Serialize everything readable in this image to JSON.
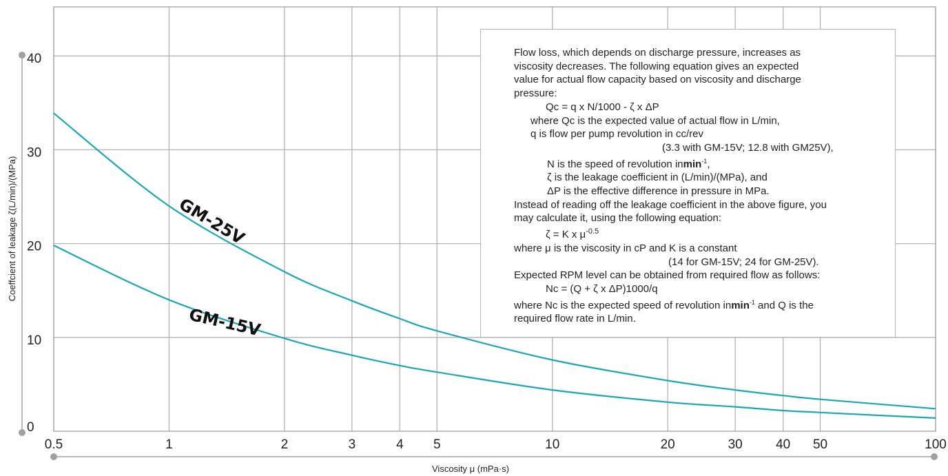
{
  "chart_data": {
    "type": "line",
    "xscale": "log",
    "xlim": [
      0.5,
      100
    ],
    "ylim": [
      0,
      45
    ],
    "xlabel": "Viscosity μ (mPa·s)",
    "ylabel": "Coeffcient of leakage ζ(L/min)/(MPa)",
    "x_ticks": [
      0.5,
      1,
      2,
      3,
      4,
      5,
      10,
      20,
      30,
      40,
      50,
      100
    ],
    "x_tick_labels": [
      "0.5",
      "1",
      "2",
      "3",
      "4",
      "5",
      "10",
      "20",
      "30",
      "40",
      "50",
      "100"
    ],
    "y_ticks": [
      0,
      10,
      20,
      30,
      40
    ],
    "y_tick_labels": [
      "0",
      "10",
      "20",
      "30",
      "40"
    ],
    "grid": true,
    "series": [
      {
        "name": "GM-25V",
        "color": "#1aa6b4",
        "x": [
          0.5,
          1,
          2,
          3,
          4,
          5,
          10,
          20,
          30,
          40,
          50,
          100
        ],
        "y": [
          33.9,
          24.0,
          17.0,
          13.9,
          12.0,
          10.7,
          7.6,
          5.4,
          4.4,
          3.8,
          3.4,
          2.4
        ]
      },
      {
        "name": "GM-15V",
        "color": "#1aa6b4",
        "x": [
          0.5,
          1,
          2,
          3,
          4,
          5,
          10,
          20,
          30,
          40,
          50,
          100
        ],
        "y": [
          19.8,
          14.0,
          9.9,
          8.1,
          7.0,
          6.3,
          4.4,
          3.1,
          2.6,
          2.2,
          2.0,
          1.4
        ]
      }
    ],
    "curve_labels": [
      {
        "text": "GM-25V",
        "series": "GM-25V"
      },
      {
        "text": "GM-15V",
        "series": "GM-15V"
      }
    ]
  },
  "note": {
    "l1": "Flow loss, which depends on discharge pressure, increases as",
    "l2": "viscosity decreases.  The following equation gives an expected",
    "l3": "value for actual flow capacity based on viscosity and discharge",
    "l4": "pressure:",
    "l5": "Qc = q x N/1000 - ζ x  ΔP",
    "l6": "where Qc is the expected value of actual flow in L/min,",
    "l7": "q is flow per pump revolution in cc/rev",
    "l8": "(3.3 with GM-15V; 12.8 with GM25V),",
    "l9a": "N is the speed of revolution in",
    "l9b": "min",
    "l9c": "-1",
    "l9d": ",",
    "l10": "ζ is the leakage coefficient in (L/min)/(MPa), and",
    "l11": "ΔP is the effective difference in pressure in MPa.",
    "l12": "Instead of reading off the leakage coefficient in the above figure, you",
    "l13": "may calculate it, using the following equation:",
    "l14a": "ζ = K x μ",
    "l14b": "-0.5",
    "l15": "where  μ  is the viscosity in cP and K is a constant",
    "l16": "(14 for GM-15V; 24 for GM-25V).",
    "l17": "Expected RPM level can be obtained from required flow as follows:",
    "l18": "Nc = (Q + ζ x  ΔP)1000/q",
    "l19a": "where Nc is the expected speed of revolution in",
    "l19b": "min",
    "l19c": "-1",
    "l19d": " and Q is the",
    "l20": "required flow rate in L/min."
  }
}
